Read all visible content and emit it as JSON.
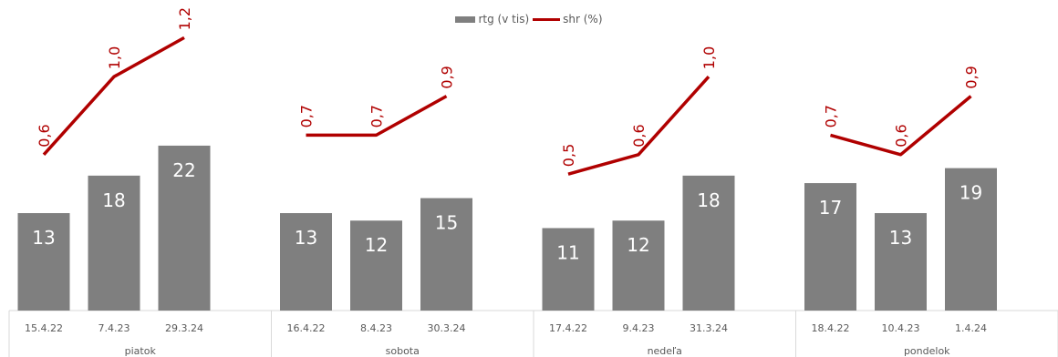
{
  "chart_data": {
    "type": "bar",
    "legend": {
      "placement": "top-center"
    },
    "grid": false,
    "groups": [
      "piatok",
      "sobota",
      "nedeľa",
      "pondelok"
    ],
    "categories": [
      [
        "15.4.22",
        "7.4.23",
        "29.3.24"
      ],
      [
        "16.4.22",
        "8.4.23",
        "30.3.24"
      ],
      [
        "17.4.22",
        "9.4.23",
        "31.3.24"
      ],
      [
        "18.4.22",
        "10.4.23",
        "1.4.24"
      ]
    ],
    "series": [
      {
        "name": "rtg (v tis)",
        "type": "bar",
        "color": "#7f7f7f",
        "values": [
          [
            13,
            18,
            22
          ],
          [
            13,
            12,
            15
          ],
          [
            11,
            12,
            18
          ],
          [
            17,
            13,
            19
          ]
        ],
        "labels": [
          [
            "13",
            "18",
            "22"
          ],
          [
            "13",
            "12",
            "15"
          ],
          [
            "11",
            "12",
            "18"
          ],
          [
            "17",
            "13",
            "19"
          ]
        ]
      },
      {
        "name": "shr (%)",
        "type": "line",
        "color": "#b00000",
        "values": [
          [
            0.6,
            1.0,
            1.2
          ],
          [
            0.7,
            0.7,
            0.9
          ],
          [
            0.5,
            0.6,
            1.0
          ],
          [
            0.7,
            0.6,
            0.9
          ]
        ],
        "labels": [
          [
            "0,6",
            "1,0",
            "1,2"
          ],
          [
            "0,7",
            "0,7",
            "0,9"
          ],
          [
            "0,5",
            "0,6",
            "1,0"
          ],
          [
            "0,7",
            "0,6",
            "0,9"
          ]
        ]
      }
    ],
    "bar_value_range": [
      0,
      39
    ],
    "line_value_range": [
      -0.2,
      1.3
    ]
  }
}
